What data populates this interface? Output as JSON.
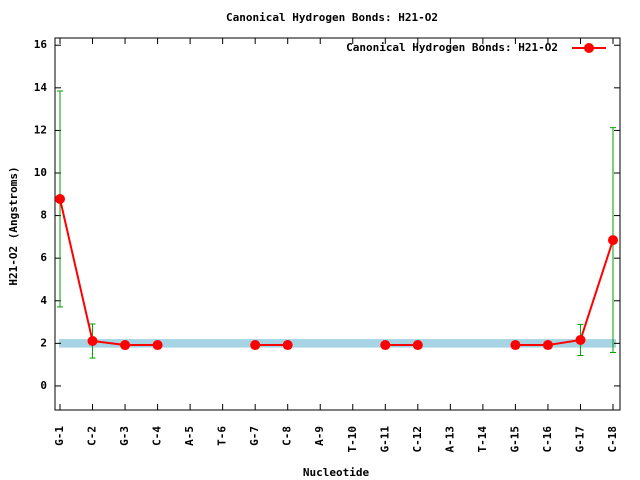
{
  "chart_data": {
    "type": "line",
    "title": "Canonical Hydrogen Bonds: H21-O2",
    "x_label": "Nucleotide",
    "y_label": "H21-O2 (Angstroms)",
    "categories": [
      "G-1",
      "C-2",
      "G-3",
      "C-4",
      "A-5",
      "T-6",
      "G-7",
      "C-8",
      "A-9",
      "T-10",
      "G-11",
      "C-12",
      "A-13",
      "T-14",
      "G-15",
      "C-16",
      "G-17",
      "C-18"
    ],
    "series": [
      {
        "name": "Canonical Hydrogen Bonds: H21-O2",
        "color": "#ff0000",
        "error_color": "#00a000",
        "values": [
          8.78,
          2.11,
          1.92,
          1.92,
          null,
          null,
          1.92,
          1.92,
          null,
          null,
          1.92,
          1.92,
          null,
          null,
          1.92,
          1.92,
          2.16,
          6.85
        ],
        "errors": [
          5.07,
          0.8,
          0.05,
          0.05,
          null,
          null,
          0.05,
          0.05,
          null,
          null,
          0.05,
          0.05,
          null,
          null,
          0.05,
          0.05,
          0.73,
          5.28
        ]
      }
    ],
    "reference_band": {
      "range": [
        1.8,
        2.2
      ],
      "color": "#a6d4e4"
    },
    "ylim": [
      -1.13,
      16.34
    ],
    "yticks": [
      0,
      2,
      4,
      6,
      8,
      10,
      12,
      14,
      16
    ],
    "legend": "top-right"
  }
}
